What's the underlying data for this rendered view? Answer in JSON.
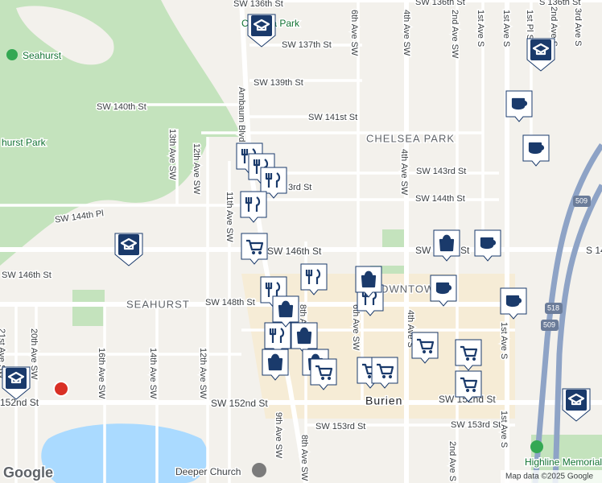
{
  "map": {
    "streets": [
      "SW 136th St",
      "SW 136th St",
      "S 136th St",
      "SW 137th St",
      "6th Ave SW",
      "4th Ave SW",
      "2nd Ave SW",
      "1st Ave S",
      "1st Ave S",
      "1st Pl S",
      "2nd Ave S",
      "3rd Ave S",
      "SW 139th St",
      "SW 140th St",
      "SW 141st St",
      "Ambaum Blvd SW",
      "13th Ave SW",
      "12th Ave SW",
      "SW 143rd St",
      "3rd St",
      "SW 144th St",
      "4th Ave SW",
      "11th Ave SW",
      "SW 144th Pl",
      "SW 146th St",
      "SW 146th St",
      "SW 146th St",
      "S 14",
      "SW 148th St",
      "8th Ave SW",
      "6th Ave SW",
      "4th Ave S",
      "1st Ave S",
      "21st Ave SW",
      "20th Ave SW",
      "16th Ave SW",
      "14th Ave SW",
      "12th Ave SW",
      "152nd St",
      "SW 152nd St",
      "SW 152nd St",
      "SW 153rd St",
      "SW 153rd St",
      "9th Ave SW",
      "8th Ave SW",
      "2nd Ave S",
      "1st Ave S"
    ],
    "areas": [
      "CHELSEA PARK",
      "SEAHURST",
      "DOWNTOWN",
      "Burien"
    ],
    "places": [
      "Seahurst",
      "Chelsea Park",
      "hurst Park",
      "Highline Memorial Stadium",
      "Deeper Church"
    ],
    "shields": [
      "509",
      "518",
      "509"
    ]
  },
  "attribution": {
    "logo": "Google",
    "data": "Map data ©2025 Google"
  }
}
